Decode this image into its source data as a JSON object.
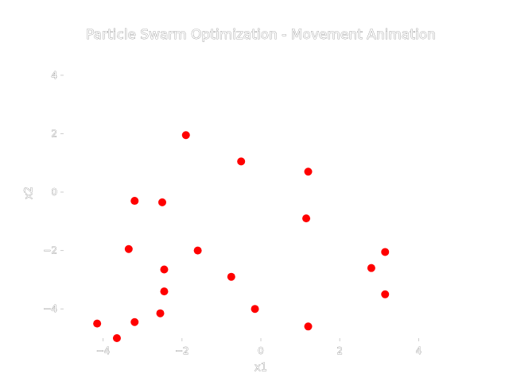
{
  "chart_data": {
    "type": "scatter",
    "title": "Particle Swarm Optimization - Movement Animation",
    "xlabel": "x1",
    "ylabel": "x2",
    "xlim": [
      -5,
      5
    ],
    "ylim": [
      -5,
      5
    ],
    "x_ticks": [
      -4,
      -2,
      0,
      2,
      4
    ],
    "y_ticks": [
      -4,
      -2,
      0,
      2,
      4
    ],
    "x_tick_labels": [
      "−4",
      "−2",
      "0",
      "2",
      "4"
    ],
    "y_tick_labels": [
      "−4",
      "−2",
      "0",
      "2",
      "4"
    ],
    "grid": false,
    "point_color": "#ff0000",
    "points": [
      {
        "x": -1.9,
        "y": 1.95
      },
      {
        "x": -0.5,
        "y": 1.05
      },
      {
        "x": 1.2,
        "y": 0.7
      },
      {
        "x": -3.2,
        "y": -0.3
      },
      {
        "x": -2.5,
        "y": -0.35
      },
      {
        "x": 1.15,
        "y": -0.9
      },
      {
        "x": -3.35,
        "y": -1.95
      },
      {
        "x": -1.6,
        "y": -2.0
      },
      {
        "x": 3.15,
        "y": -2.05
      },
      {
        "x": -2.45,
        "y": -2.65
      },
      {
        "x": 2.8,
        "y": -2.6
      },
      {
        "x": -0.75,
        "y": -2.9
      },
      {
        "x": -2.45,
        "y": -3.4
      },
      {
        "x": 3.15,
        "y": -3.5
      },
      {
        "x": -0.15,
        "y": -4.0
      },
      {
        "x": -2.55,
        "y": -4.15
      },
      {
        "x": -4.15,
        "y": -4.5
      },
      {
        "x": -3.2,
        "y": -4.45
      },
      {
        "x": 1.2,
        "y": -4.6
      },
      {
        "x": -3.65,
        "y": -5.0
      }
    ]
  }
}
